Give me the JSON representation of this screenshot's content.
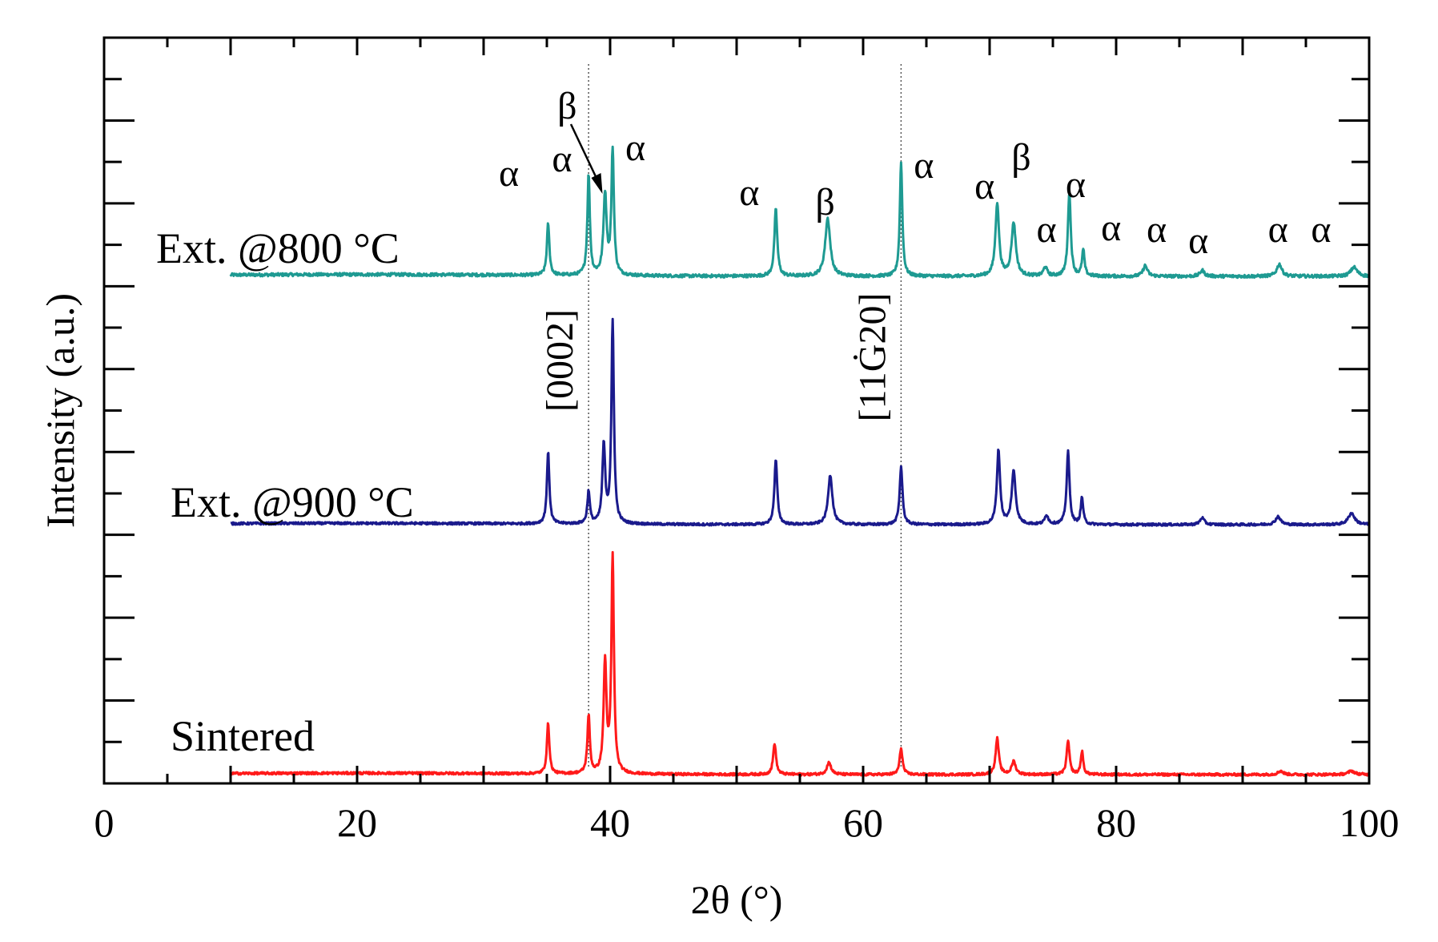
{
  "chart_data": {
    "type": "line",
    "xlabel": "2θ (°)",
    "ylabel": "Intensity (a.u.)",
    "xlim": [
      0,
      100
    ],
    "x_ticks": [
      0,
      20,
      40,
      60,
      80,
      100
    ],
    "x_tick_labels": [
      "0",
      "20",
      "40",
      "60",
      "80",
      "100"
    ],
    "y_ticks_shown": false,
    "grid": false,
    "reference_lines": [
      {
        "x": 38.3,
        "label": "[0002]"
      },
      {
        "x": 63.0,
        "label": "[11Ġ20]"
      }
    ],
    "series": [
      {
        "name": "Ext. @800 °C",
        "color": "#1e9a92",
        "baseline": 0.0,
        "x_start": 10,
        "peaks": [
          {
            "x": 35.1,
            "height": 0.34,
            "width": 0.35
          },
          {
            "x": 38.3,
            "height": 0.66,
            "width": 0.35
          },
          {
            "x": 39.6,
            "height": 0.53,
            "width": 0.45
          },
          {
            "x": 40.2,
            "height": 0.82,
            "width": 0.35
          },
          {
            "x": 53.1,
            "height": 0.44,
            "width": 0.4
          },
          {
            "x": 57.2,
            "height": 0.38,
            "width": 0.7
          },
          {
            "x": 63.0,
            "height": 0.75,
            "width": 0.35
          },
          {
            "x": 70.6,
            "height": 0.48,
            "width": 0.5
          },
          {
            "x": 71.9,
            "height": 0.35,
            "width": 0.6
          },
          {
            "x": 74.4,
            "height": 0.06,
            "width": 0.5
          },
          {
            "x": 76.3,
            "height": 0.55,
            "width": 0.4
          },
          {
            "x": 77.4,
            "height": 0.17,
            "width": 0.35
          },
          {
            "x": 82.3,
            "height": 0.07,
            "width": 0.6
          },
          {
            "x": 86.8,
            "height": 0.04,
            "width": 0.6
          },
          {
            "x": 92.9,
            "height": 0.08,
            "width": 0.7
          },
          {
            "x": 98.8,
            "height": 0.06,
            "width": 0.9
          }
        ],
        "phase_labels": [
          {
            "x": 32.0,
            "text": "α"
          },
          {
            "x": 36.2,
            "text": "α"
          },
          {
            "x": 36.6,
            "text": "β"
          },
          {
            "x": 42.0,
            "text": "α"
          },
          {
            "x": 51.0,
            "text": "α"
          },
          {
            "x": 57.0,
            "text": "β"
          },
          {
            "x": 64.8,
            "text": "α"
          },
          {
            "x": 69.6,
            "text": "α"
          },
          {
            "x": 72.5,
            "text": "β"
          },
          {
            "x": 74.5,
            "text": "α"
          },
          {
            "x": 76.8,
            "text": "α"
          },
          {
            "x": 79.6,
            "text": "α"
          },
          {
            "x": 83.2,
            "text": "α"
          },
          {
            "x": 86.5,
            "text": "α"
          },
          {
            "x": 92.8,
            "text": "α"
          },
          {
            "x": 96.2,
            "text": "α"
          }
        ]
      },
      {
        "name": "Ext. @900 °C",
        "color": "#1a1a8c",
        "baseline": 0.0,
        "x_start": 10,
        "peaks": [
          {
            "x": 35.1,
            "height": 0.62,
            "width": 0.35
          },
          {
            "x": 38.3,
            "height": 0.28,
            "width": 0.35
          },
          {
            "x": 39.5,
            "height": 0.68,
            "width": 0.4
          },
          {
            "x": 40.2,
            "height": 1.75,
            "width": 0.35
          },
          {
            "x": 53.1,
            "height": 0.56,
            "width": 0.4
          },
          {
            "x": 57.4,
            "height": 0.43,
            "width": 0.6
          },
          {
            "x": 63.0,
            "height": 0.5,
            "width": 0.4
          },
          {
            "x": 70.7,
            "height": 0.64,
            "width": 0.45
          },
          {
            "x": 71.9,
            "height": 0.46,
            "width": 0.55
          },
          {
            "x": 74.5,
            "height": 0.08,
            "width": 0.5
          },
          {
            "x": 76.2,
            "height": 0.63,
            "width": 0.4
          },
          {
            "x": 77.3,
            "height": 0.23,
            "width": 0.35
          },
          {
            "x": 86.8,
            "height": 0.06,
            "width": 0.6
          },
          {
            "x": 92.8,
            "height": 0.07,
            "width": 0.7
          },
          {
            "x": 98.6,
            "height": 0.1,
            "width": 0.9
          }
        ]
      },
      {
        "name": "Sintered",
        "color": "#ff1a1a",
        "baseline": 0.0,
        "x_start": 10,
        "peaks": [
          {
            "x": 35.1,
            "height": 0.42,
            "width": 0.35
          },
          {
            "x": 38.3,
            "height": 0.48,
            "width": 0.35
          },
          {
            "x": 39.6,
            "height": 0.92,
            "width": 0.4
          },
          {
            "x": 40.2,
            "height": 1.8,
            "width": 0.35
          },
          {
            "x": 53.0,
            "height": 0.26,
            "width": 0.4
          },
          {
            "x": 57.3,
            "height": 0.1,
            "width": 0.6
          },
          {
            "x": 63.0,
            "height": 0.22,
            "width": 0.4
          },
          {
            "x": 70.6,
            "height": 0.3,
            "width": 0.45
          },
          {
            "x": 71.9,
            "height": 0.11,
            "width": 0.55
          },
          {
            "x": 76.2,
            "height": 0.28,
            "width": 0.4
          },
          {
            "x": 77.3,
            "height": 0.19,
            "width": 0.35
          },
          {
            "x": 93.0,
            "height": 0.03,
            "width": 0.7
          },
          {
            "x": 98.6,
            "height": 0.03,
            "width": 0.9
          }
        ]
      }
    ]
  }
}
